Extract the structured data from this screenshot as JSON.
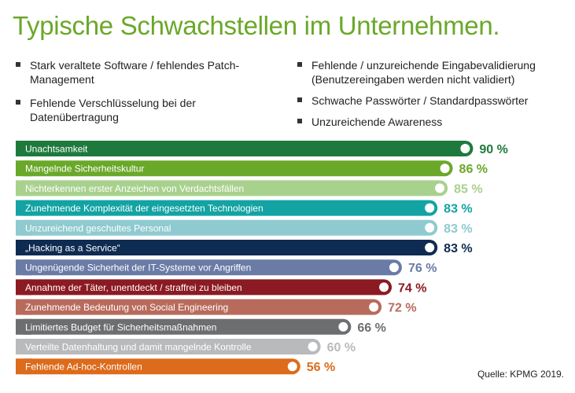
{
  "title": "Typische Schwachstellen im Unternehmen.",
  "bullets_left": [
    "Stark veraltete Software / fehlendes Patch-Management",
    "Fehlende Verschlüsselung bei der Datenübertragung"
  ],
  "bullets_right": [
    "Fehlende / unzureichende Eingabevalidierung (Benutzereingaben werden nicht validiert)",
    "Schwache Passwörter / Standardpasswörter",
    "Unzureichende Awareness"
  ],
  "source": "Quelle: KPMG 2019.",
  "chart_data": {
    "type": "bar",
    "orientation": "horizontal",
    "value_suffix": " %",
    "xlim": [
      0,
      100
    ],
    "categories": [
      "Unachtsamkeit",
      "Mangelnde Sicherheitskultur",
      "Nichterkennen erster Anzeichen von Verdachtsfällen",
      "Zunehmende Komplexität der eingesetzten Technologien",
      "Unzureichend geschultes Personal",
      "„Hacking as a Service“",
      "Ungenügende Sicherheit der IT-Systeme vor Angriffen",
      "Annahme der Täter, unentdeckt / straffrei zu bleiben",
      "Zunehmende Bedeutung von Social Engineering",
      "Limitiertes Budget für Sicherheitsmaßnahmen",
      "Verteilte Datenhaltung und damit mangelnde Kontrolle",
      "Fehlende Ad-hoc-Kontrollen"
    ],
    "values": [
      90,
      86,
      85,
      83,
      83,
      83,
      76,
      74,
      72,
      66,
      60,
      56
    ],
    "colors": [
      "#1e7a3c",
      "#6aa829",
      "#a9d18e",
      "#13a3a3",
      "#8fcad0",
      "#0e2b52",
      "#6a7ba6",
      "#8b1a22",
      "#b86b5c",
      "#6d6e70",
      "#b9babb",
      "#dd6b1c"
    ]
  }
}
